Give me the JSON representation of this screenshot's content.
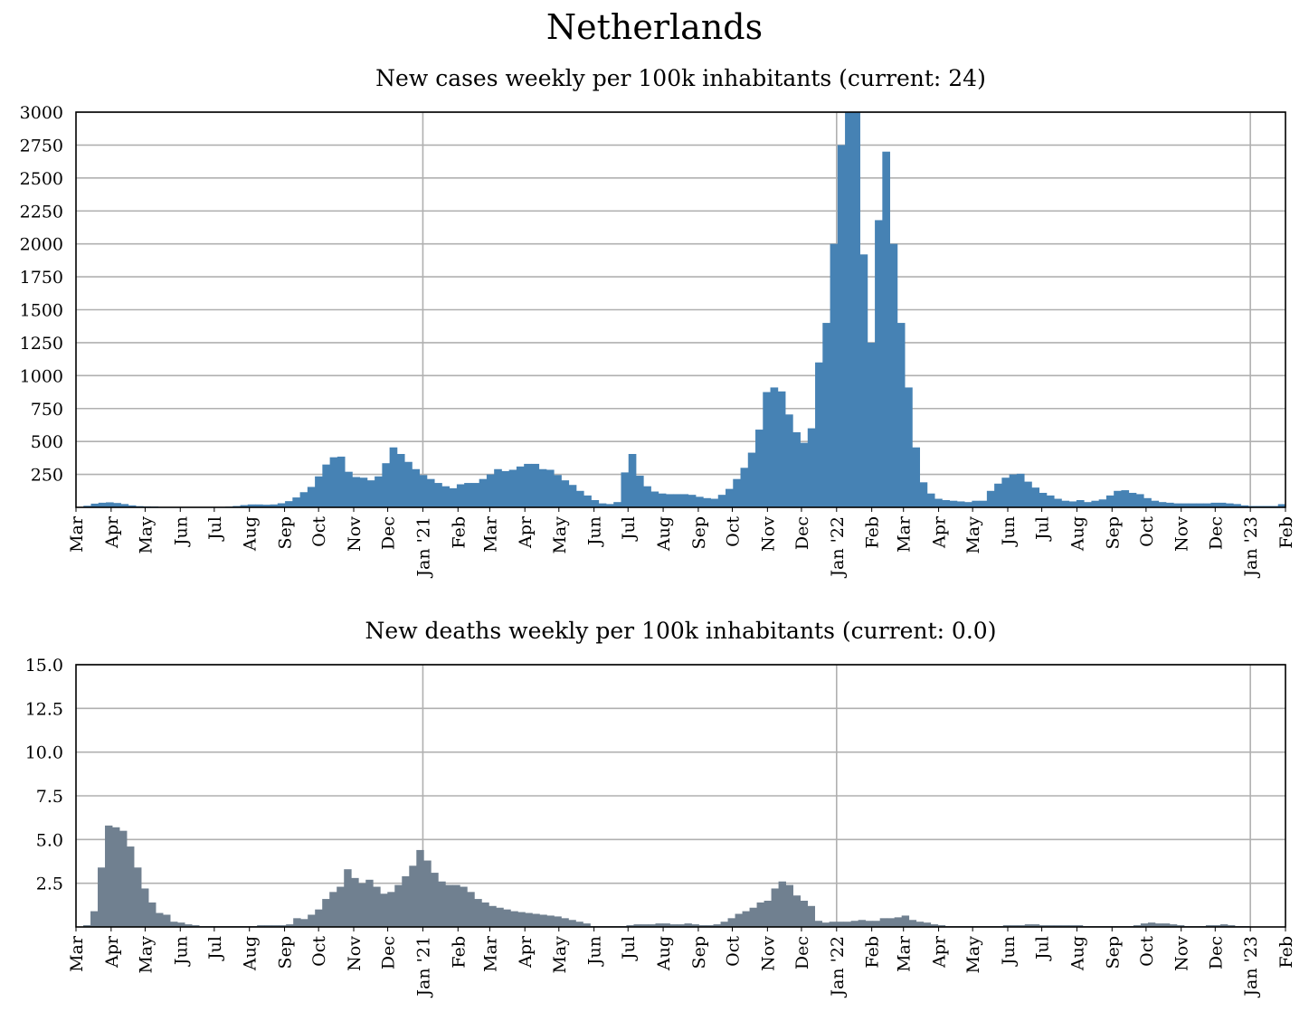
{
  "title": "Netherlands",
  "chart_data": [
    {
      "type": "bar",
      "title": "New cases weekly per 100k inhabitants (current: 24)",
      "color": "#4682b4",
      "ylim": [
        0,
        3000
      ],
      "yticks": [
        "250",
        "500",
        "750",
        "1000",
        "1250",
        "1500",
        "1750",
        "2000",
        "2250",
        "2500",
        "2750",
        "3000"
      ],
      "ytick_values": [
        250,
        500,
        750,
        1000,
        1250,
        1500,
        1750,
        2000,
        2250,
        2500,
        2750,
        3000
      ],
      "x_start": "2020-03-01",
      "x_end": "2023-02-01",
      "xticks": [
        "Mar",
        "Apr",
        "May",
        "Jun",
        "Jul",
        "Aug",
        "Sep",
        "Oct",
        "Nov",
        "Dec",
        "Jan '21",
        "Feb",
        "Mar",
        "Apr",
        "May",
        "Jun",
        "Jul",
        "Aug",
        "Sep",
        "Oct",
        "Nov",
        "Dec",
        "Jan '22",
        "Feb",
        "Mar",
        "Apr",
        "May",
        "Jun",
        "Jul",
        "Aug",
        "Sep",
        "Oct",
        "Nov",
        "Dec",
        "Jan '23",
        "Feb"
      ],
      "grid": "on",
      "values": [
        1,
        12,
        28,
        35,
        38,
        33,
        25,
        15,
        9,
        7,
        6,
        3,
        2,
        2,
        2,
        2,
        2,
        2,
        2,
        3,
        5,
        10,
        17,
        22,
        22,
        20,
        22,
        31,
        47,
        75,
        115,
        155,
        235,
        325,
        380,
        385,
        270,
        230,
        225,
        205,
        235,
        335,
        455,
        405,
        345,
        290,
        245,
        215,
        185,
        160,
        145,
        175,
        185,
        185,
        215,
        250,
        290,
        275,
        285,
        310,
        330,
        330,
        290,
        285,
        245,
        205,
        170,
        125,
        90,
        55,
        30,
        25,
        40,
        265,
        405,
        240,
        160,
        120,
        105,
        100,
        100,
        100,
        95,
        80,
        70,
        65,
        95,
        140,
        215,
        300,
        415,
        590,
        875,
        910,
        880,
        705,
        570,
        490,
        600,
        1100,
        1400,
        2000,
        2750,
        3000,
        3000,
        1920,
        1250,
        2180,
        2700,
        2000,
        1400,
        910,
        455,
        190,
        105,
        65,
        55,
        50,
        45,
        40,
        50,
        50,
        125,
        180,
        225,
        250,
        255,
        195,
        150,
        110,
        90,
        65,
        50,
        45,
        55,
        40,
        50,
        60,
        90,
        125,
        130,
        110,
        100,
        70,
        50,
        40,
        35,
        30,
        30,
        30,
        30,
        30,
        35,
        35,
        30,
        25,
        15,
        10,
        10,
        10,
        10,
        24
      ]
    },
    {
      "type": "bar",
      "title": "New deaths weekly per 100k inhabitants (current: 0.0)",
      "color": "#708090",
      "ylim": [
        0,
        15
      ],
      "yticks": [
        "2.5",
        "5.0",
        "7.5",
        "10.0",
        "12.5",
        "15.0"
      ],
      "ytick_values": [
        2.5,
        5,
        7.5,
        10,
        12.5,
        15
      ],
      "x_start": "2020-03-01",
      "x_end": "2023-02-01",
      "xticks": [
        "Mar",
        "Apr",
        "May",
        "Jun",
        "Jul",
        "Aug",
        "Sep",
        "Oct",
        "Nov",
        "Dec",
        "Jan '21",
        "Feb",
        "Mar",
        "Apr",
        "May",
        "Jun",
        "Jul",
        "Aug",
        "Sep",
        "Oct",
        "Nov",
        "Dec",
        "Jan '22",
        "Feb",
        "Mar",
        "Apr",
        "May",
        "Jun",
        "Jul",
        "Aug",
        "Sep",
        "Oct",
        "Nov",
        "Dec",
        "Jan '23",
        "Feb"
      ],
      "grid": "on",
      "values": [
        0.0,
        0.1,
        0.9,
        3.4,
        5.8,
        5.7,
        5.5,
        4.6,
        3.4,
        2.2,
        1.4,
        0.8,
        0.7,
        0.3,
        0.25,
        0.15,
        0.1,
        0.05,
        0.05,
        0.05,
        0.05,
        0.05,
        0.05,
        0.05,
        0.05,
        0.1,
        0.1,
        0.1,
        0.1,
        0.15,
        0.5,
        0.45,
        0.7,
        1.0,
        1.6,
        2.0,
        2.3,
        3.3,
        2.8,
        2.5,
        2.7,
        2.3,
        1.9,
        2.0,
        2.4,
        2.9,
        3.5,
        4.4,
        3.8,
        3.1,
        2.6,
        2.4,
        2.4,
        2.3,
        2.0,
        1.6,
        1.4,
        1.2,
        1.1,
        1.0,
        0.9,
        0.85,
        0.8,
        0.75,
        0.7,
        0.65,
        0.6,
        0.5,
        0.4,
        0.3,
        0.2,
        0.05,
        0.05,
        0.05,
        0.05,
        0.05,
        0.1,
        0.15,
        0.15,
        0.15,
        0.2,
        0.2,
        0.15,
        0.15,
        0.2,
        0.15,
        0.1,
        0.1,
        0.15,
        0.3,
        0.5,
        0.75,
        0.9,
        1.1,
        1.4,
        1.5,
        2.2,
        2.6,
        2.4,
        1.8,
        1.5,
        1.2,
        0.35,
        0.25,
        0.3,
        0.3,
        0.3,
        0.35,
        0.4,
        0.35,
        0.35,
        0.5,
        0.5,
        0.55,
        0.65,
        0.4,
        0.3,
        0.25,
        0.15,
        0.1,
        0.05,
        0.05,
        0.05,
        0.05,
        0.05,
        0.05,
        0.05,
        0.05,
        0.1,
        0.1,
        0.1,
        0.15,
        0.15,
        0.1,
        0.1,
        0.1,
        0.1,
        0.1,
        0.1,
        0.05,
        0.05,
        0.05,
        0.05,
        0.05,
        0.05,
        0.05,
        0.1,
        0.2,
        0.25,
        0.2,
        0.2,
        0.15,
        0.1,
        0.05,
        0.05,
        0.05,
        0.1,
        0.1,
        0.15,
        0.1,
        0.05,
        0.05,
        0.0,
        0.0,
        0.0,
        0.0,
        0.0
      ]
    }
  ]
}
